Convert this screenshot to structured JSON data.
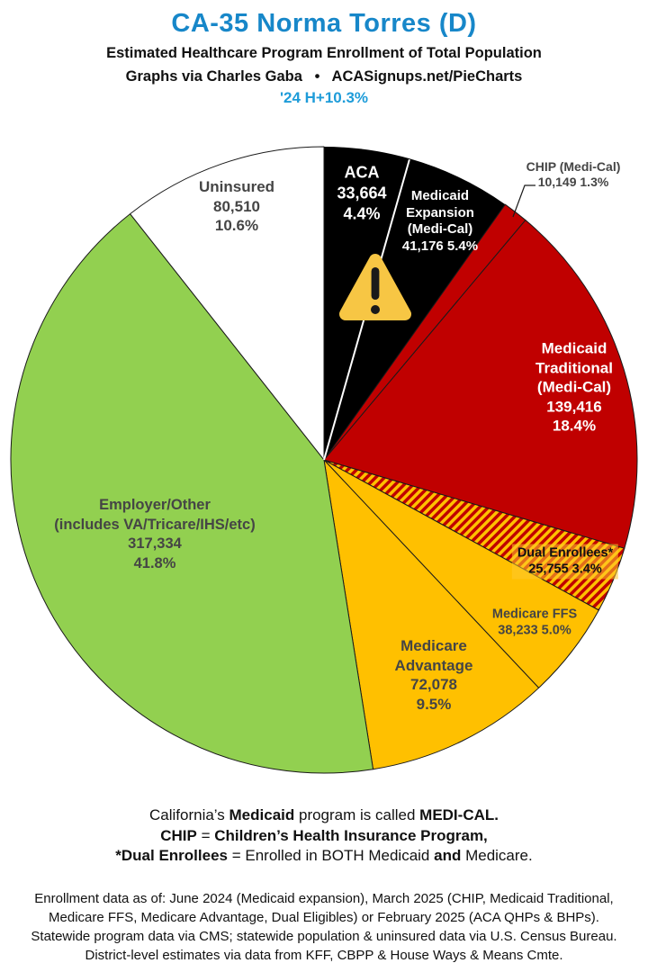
{
  "header": {
    "title": "CA-35 Norma Torres (D)",
    "subtitle": "Estimated Healthcare Program Enrollment of Total Population",
    "attribution": "Graphs via Charles Gaba   •   ACASignups.net/PieCharts",
    "trend_note": "'24 H+10.3%"
  },
  "colors": {
    "title_blue": "#1787C9",
    "trend_blue": "#1E9CD9",
    "pie_black": "#000000",
    "pie_red": "#C00000",
    "pie_gold": "#FFC000",
    "pie_green": "#92D050",
    "pie_white": "#FFFFFF",
    "slice_label_gray": "#454545",
    "warning_gold": "#F7C644"
  },
  "icons": {
    "warning": "warning-triangle-icon"
  },
  "chart_data": {
    "type": "pie",
    "title": "CA-35 Norma Torres (D)",
    "subtitle": "Estimated Healthcare Program Enrollment of Total Population",
    "start_angle_deg": 0,
    "direction": "clockwise",
    "legend_position": "labels-on-slices",
    "segments": [
      {
        "id": "aca",
        "name": "ACA",
        "value": 33664,
        "pct": 4.4,
        "color": "#000000",
        "label_lines": [
          "ACA",
          "33,664",
          "4.4%"
        ],
        "label_color": "#FFFFFF"
      },
      {
        "id": "expansion",
        "name": "Medicaid Expansion (Medi-Cal)",
        "value": 41176,
        "pct": 5.4,
        "color": "#000000",
        "label_lines": [
          "Medicaid",
          "Expansion",
          "(Medi-Cal)",
          "41,176 5.4%"
        ],
        "label_color": "#FFFFFF"
      },
      {
        "id": "chip",
        "name": "CHIP (Medi-Cal)",
        "value": 10149,
        "pct": 1.3,
        "color": "#C00000",
        "label_lines": [
          "CHIP (Medi-Cal)",
          "10,149 1.3%"
        ],
        "label_color": "#454545",
        "label_outside": true
      },
      {
        "id": "traditional",
        "name": "Medicaid Traditional (Medi-Cal)",
        "value": 139416,
        "pct": 18.4,
        "color": "#C00000",
        "label_lines": [
          "Medicaid",
          "Traditional",
          "(Medi-Cal)",
          "139,416",
          "18.4%"
        ],
        "label_color": "#FFFFFF"
      },
      {
        "id": "dual",
        "name": "Dual Enrollees*",
        "value": 25755,
        "pct": 3.4,
        "color": "#C00000",
        "hatch": true,
        "hatch_color": "#FFC000",
        "label_lines": [
          "Dual Enrollees*",
          "25,755 3.4%"
        ],
        "label_color": "#111111"
      },
      {
        "id": "ffs",
        "name": "Medicare FFS",
        "value": 38233,
        "pct": 5.0,
        "color": "#FFC000",
        "label_lines": [
          "Medicare FFS",
          "38,233 5.0%"
        ],
        "label_color": "#454545"
      },
      {
        "id": "advantage",
        "name": "Medicare Advantage",
        "value": 72078,
        "pct": 9.5,
        "color": "#FFC000",
        "label_lines": [
          "Medicare",
          "Advantage",
          "72,078",
          "9.5%"
        ],
        "label_color": "#454545"
      },
      {
        "id": "employer",
        "name": "Employer/Other (includes VA/Tricare/IHS/etc)",
        "value": 317334,
        "pct": 41.8,
        "color": "#92D050",
        "label_lines": [
          "Employer/Other",
          "(includes VA/Tricare/IHS/etc)",
          "317,334",
          "41.8%"
        ],
        "label_color": "#454545"
      },
      {
        "id": "uninsured",
        "name": "Uninsured",
        "value": 80510,
        "pct": 10.6,
        "color": "#FFFFFF",
        "label_lines": [
          "Uninsured",
          "80,510",
          "10.6%"
        ],
        "label_color": "#454545"
      }
    ]
  },
  "notes": {
    "lines": [
      [
        {
          "t": "California’s ",
          "b": false
        },
        {
          "t": "Medicaid",
          "b": true
        },
        {
          "t": " program is called ",
          "b": false
        },
        {
          "t": "MEDI-CAL.",
          "b": true
        }
      ],
      [
        {
          "t": "CHIP",
          "b": true
        },
        {
          "t": " = ",
          "b": false
        },
        {
          "t": "Children’s Health Insurance Program,",
          "b": true
        }
      ],
      [
        {
          "t": "*Dual Enrollees",
          "b": true
        },
        {
          "t": " = Enrolled in BOTH Medicaid ",
          "b": false
        },
        {
          "t": "and",
          "b": true
        },
        {
          "t": " Medicare.",
          "b": false
        }
      ]
    ]
  },
  "source": {
    "lines": [
      "Enrollment data as of: June 2024 (Medicaid expansion), March 2025 (CHIP, Medicaid Traditional,",
      "Medicare FFS, Medicare Advantage, Dual Eligibles) or February 2025 (ACA QHPs & BHPs).",
      "Statewide program data via CMS; statewide population & uninsured data via U.S. Census Bureau.",
      "District-level estimates via data from KFF, CBPP & House Ways & Means Cmte."
    ]
  }
}
